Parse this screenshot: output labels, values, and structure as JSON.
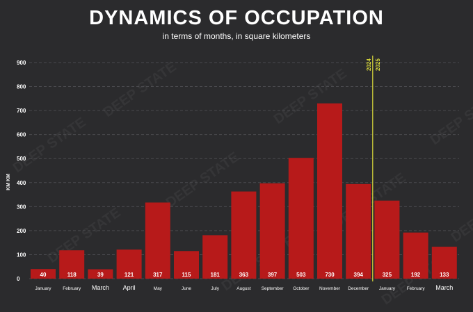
{
  "chart_data": {
    "type": "bar",
    "title": "DYNAMICS OF OCCUPATION",
    "subtitle": "in terms of months, in square kilometers",
    "ylabel": "KM KM",
    "xlabel": "",
    "ylim": [
      0,
      900
    ],
    "yticks": [
      0,
      100,
      200,
      300,
      400,
      500,
      600,
      700,
      800,
      900
    ],
    "grid": true,
    "categories": [
      "January",
      "February",
      "March",
      "April",
      "May",
      "June",
      "July",
      "August",
      "September",
      "October",
      "November",
      "December",
      "January",
      "February",
      "March"
    ],
    "values": [
      40,
      118,
      39,
      121,
      317,
      115,
      181,
      363,
      397,
      503,
      730,
      394,
      325,
      192,
      133
    ],
    "year_divider": {
      "after_index": 11,
      "left_label": "2024",
      "right_label": "2025"
    }
  },
  "watermark": {
    "line1": "DEEP",
    "line2": "STATE"
  },
  "colors": {
    "background": "#2b2b2d",
    "bar": "#b71a1a",
    "grid": "#4a4a4e",
    "divider": "#d8d83a",
    "text": "#ffffff"
  }
}
